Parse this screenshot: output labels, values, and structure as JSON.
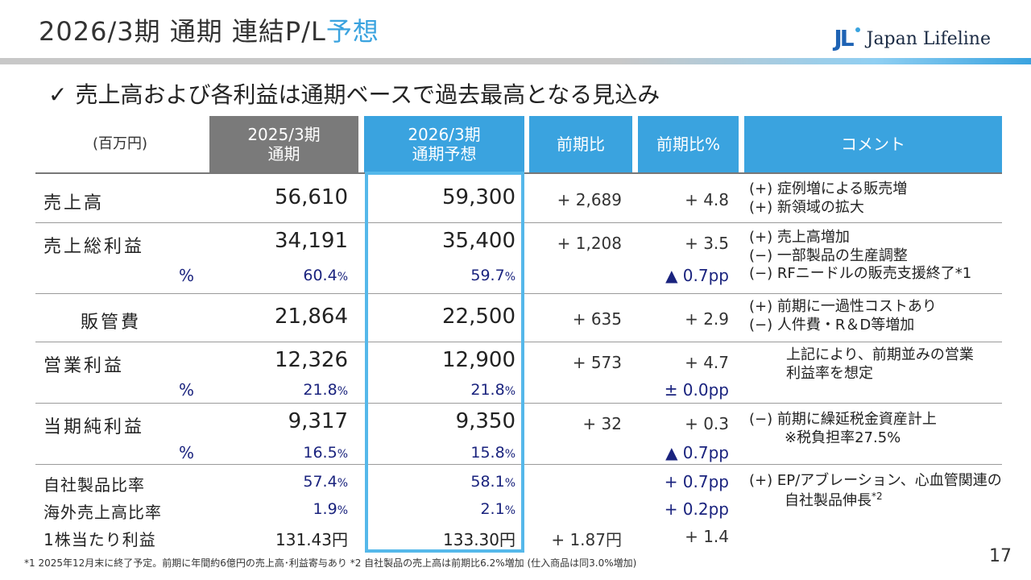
{
  "header": {
    "title_main": "2026/3期 通期 連結P/L",
    "title_accent": "予想",
    "logo_mark": "JL",
    "logo_text": "Japan Lifeline"
  },
  "subtitle": {
    "check": "✓",
    "text": "売上高および各利益は通期ベースで過去最高となる見込み"
  },
  "table": {
    "unit": "(百万円)",
    "col_fy25_line1": "2025/3期",
    "col_fy25_line2": "通期",
    "col_fy26_line1": "2026/3期",
    "col_fy26_line2": "通期予想",
    "col_yoy": "前期比",
    "col_yoy_pct": "前期比%",
    "col_comment": "コメント",
    "rows": {
      "sales": {
        "label": "売上高",
        "fy25": "56,610",
        "fy26": "59,300",
        "yoy": "+ 2,689",
        "yoy_pct": "+ 4.8",
        "comment1": "(+) 症例増による販売増",
        "comment2": "(+) 新領域の拡大"
      },
      "gross": {
        "label": "売上総利益",
        "fy25": "34,191",
        "fy26": "35,400",
        "yoy": "+ 1,208",
        "yoy_pct": "+ 3.5",
        "pct_label": "%",
        "fy25_pct": "60.4",
        "fy26_pct": "59.7",
        "pct_change": "▲ 0.7pp",
        "comment1": "(+) 売上高増加",
        "comment2": "(−) 一部製品の生産調整",
        "comment3": "(−) RFニードルの販売支援終了*1"
      },
      "sga": {
        "label": "販管費",
        "fy25": "21,864",
        "fy26": "22,500",
        "yoy": "+ 635",
        "yoy_pct": "+ 2.9",
        "comment1": "(+) 前期に一過性コストあり",
        "comment2": "(−) 人件費・R＆D等増加"
      },
      "op": {
        "label": "営業利益",
        "fy25": "12,326",
        "fy26": "12,900",
        "yoy": "+ 573",
        "yoy_pct": "+ 4.7",
        "pct_label": "%",
        "fy25_pct": "21.8",
        "fy26_pct": "21.8",
        "pct_change": "± 0.0pp",
        "comment1": "上記により、前期並みの営業",
        "comment2": "利益率を想定"
      },
      "net": {
        "label": "当期純利益",
        "fy25": "9,317",
        "fy26": "9,350",
        "yoy": "+ 32",
        "yoy_pct": "+ 0.3",
        "pct_label": "%",
        "fy25_pct": "16.5",
        "fy26_pct": "15.8",
        "pct_change": "▲ 0.7pp",
        "comment1": "(−) 前期に繰延税金資産計上",
        "comment2": "※税負担率27.5%"
      },
      "own": {
        "label": "自社製品比率",
        "fy25": "57.4",
        "fy26": "58.1",
        "yoy_pct": "+ 0.7pp",
        "comment1": "(+) EP/アブレーション、心血管関連の",
        "comment2": "自社製品伸長",
        "comment2_sup": "*2"
      },
      "overseas": {
        "label": "海外売上高比率",
        "fy25": "1.9",
        "fy26": "2.1",
        "yoy_pct": "+ 0.2pp"
      },
      "eps": {
        "label": "1株当たり利益",
        "fy25": "131.43円",
        "fy26": "133.30円",
        "yoy": "+ 1.87円",
        "yoy_pct": "+ 1.4"
      }
    },
    "pct_unit": "%"
  },
  "footnote": "*1 2025年12月末に終了予定。前期に年間約6億円の売上高･利益寄与あり *2 自社製品の売上高は前期比6.2%増加 (仕入商品は同3.0%増加)",
  "page_number": "17"
}
